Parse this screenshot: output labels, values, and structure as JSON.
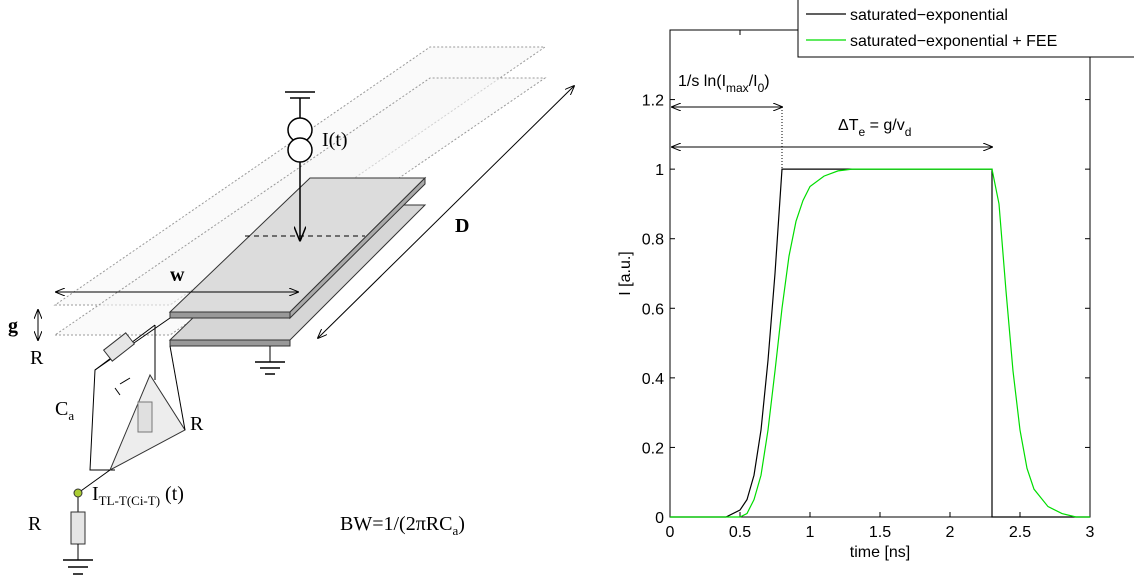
{
  "diagram": {
    "current": "I(t)",
    "length": "D",
    "width": "w",
    "gap": "g",
    "resistor_top": "R",
    "resistor_mid": "R",
    "resistor_bottom": "R",
    "capacitor": [
      "C",
      "a"
    ],
    "signal": [
      "I",
      "TL-T(Ci-T)",
      " (t)"
    ],
    "bandwidth": [
      "BW=1/(2πRC",
      "a",
      ")"
    ]
  },
  "chart_data": {
    "type": "line",
    "xlabel": "time [ns]",
    "ylabel": "I [a.u.]",
    "xlim": [
      0,
      3
    ],
    "ylim": [
      0,
      1.4
    ],
    "xticks": [
      0,
      0.5,
      1,
      1.5,
      2,
      2.5,
      3
    ],
    "yticks": [
      0,
      0.2,
      0.4,
      0.6,
      0.8,
      1,
      1.2
    ],
    "legend": "upper right",
    "annotations": [
      {
        "parts": [
          {
            "text": "1/s ln(I"
          },
          {
            "text": "max",
            "sub": true
          },
          {
            "text": "/I"
          },
          {
            "text": "0",
            "sub": true
          },
          {
            "text": ")"
          }
        ]
      },
      {
        "parts": [
          {
            "text": "ΔT"
          },
          {
            "text": "e",
            "sub": true
          },
          {
            "text": " = g/v"
          },
          {
            "text": "d",
            "sub": true
          }
        ]
      }
    ],
    "x": [
      0,
      0.4,
      0.5,
      0.55,
      0.6,
      0.65,
      0.7,
      0.75,
      0.8,
      0.85,
      0.9,
      0.95,
      1.0,
      1.1,
      1.2,
      1.3,
      1.5,
      2.0,
      2.3,
      2.3,
      2.35,
      2.4,
      2.45,
      2.5,
      2.55,
      2.6,
      2.7,
      2.8,
      2.9,
      3.0
    ],
    "series": [
      {
        "name": "saturated−exponential",
        "color": "#000000",
        "values": [
          0,
          0,
          0.02,
          0.05,
          0.12,
          0.25,
          0.45,
          0.7,
          1,
          1,
          1,
          1,
          1,
          1,
          1,
          1,
          1,
          1,
          1,
          0,
          0,
          0,
          0,
          0,
          0,
          0,
          0,
          0,
          0,
          0
        ]
      },
      {
        "name": "saturated−exponential + FEE",
        "color": "#00dd00",
        "values": [
          0,
          0,
          0,
          0.01,
          0.05,
          0.12,
          0.25,
          0.42,
          0.6,
          0.75,
          0.85,
          0.91,
          0.95,
          0.98,
          0.995,
          1,
          1,
          1,
          1,
          1,
          0.9,
          0.65,
          0.42,
          0.25,
          0.14,
          0.08,
          0.03,
          0.01,
          0,
          0
        ]
      }
    ]
  }
}
